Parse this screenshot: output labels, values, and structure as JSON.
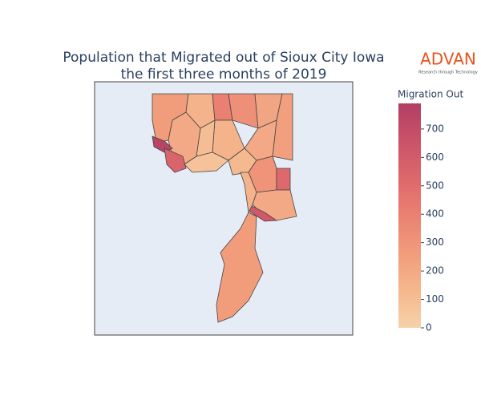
{
  "chart_data": {
    "type": "choropleth",
    "title": [
      "Population that Migrated out of Sioux City Iowa",
      "the first three months of 2019"
    ],
    "colorbar_title": "Migration Out",
    "zlim": [
      0,
      790
    ],
    "zticks": [
      0,
      100,
      200,
      300,
      400,
      500,
      600,
      700
    ],
    "colorscale": [
      "#f6d2a9",
      "#f5b78e",
      "#f19c7c",
      "#ea8171",
      "#dd686c",
      "#ca5268",
      "#b13f64"
    ],
    "values": [
      260,
      150,
      400,
      320,
      220,
      250,
      200,
      150,
      100,
      200,
      750,
      550,
      80,
      120,
      300,
      520,
      200,
      620,
      150,
      260
    ]
  },
  "logo": {
    "name": "ADVAN",
    "tagline": "Research through Technology"
  }
}
